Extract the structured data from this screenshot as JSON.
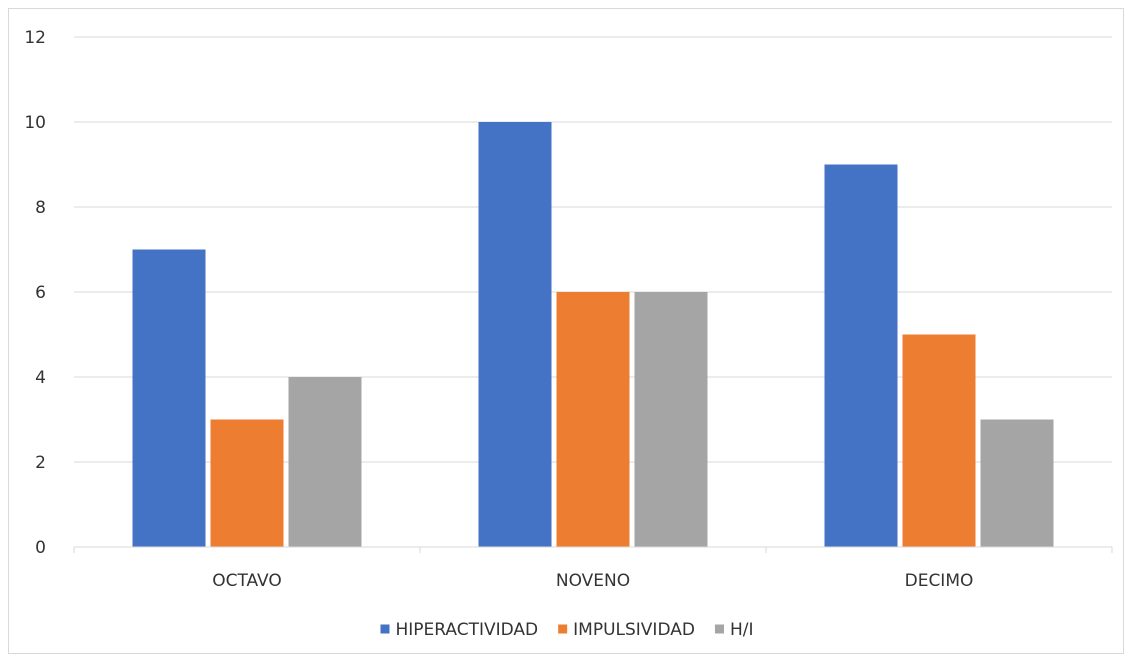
{
  "chart_data": {
    "type": "bar",
    "title": "",
    "xlabel": "",
    "ylabel": "",
    "categories": [
      "OCTAVO",
      "NOVENO",
      "DECIMO"
    ],
    "series": [
      {
        "name": "HIPERACTIVIDAD",
        "color": "#4472c4",
        "values": [
          7,
          10,
          9
        ]
      },
      {
        "name": "IMPULSIVIDAD",
        "color": "#ed7d31",
        "values": [
          3,
          6,
          5
        ]
      },
      {
        "name": "H/I",
        "color": "#a5a5a5",
        "values": [
          4,
          6,
          3
        ]
      }
    ],
    "ylim": [
      0,
      12
    ],
    "yticks": [
      "0",
      "2",
      "4",
      "6",
      "8",
      "10",
      "12"
    ],
    "grid": true,
    "legend_position": "bottom"
  }
}
